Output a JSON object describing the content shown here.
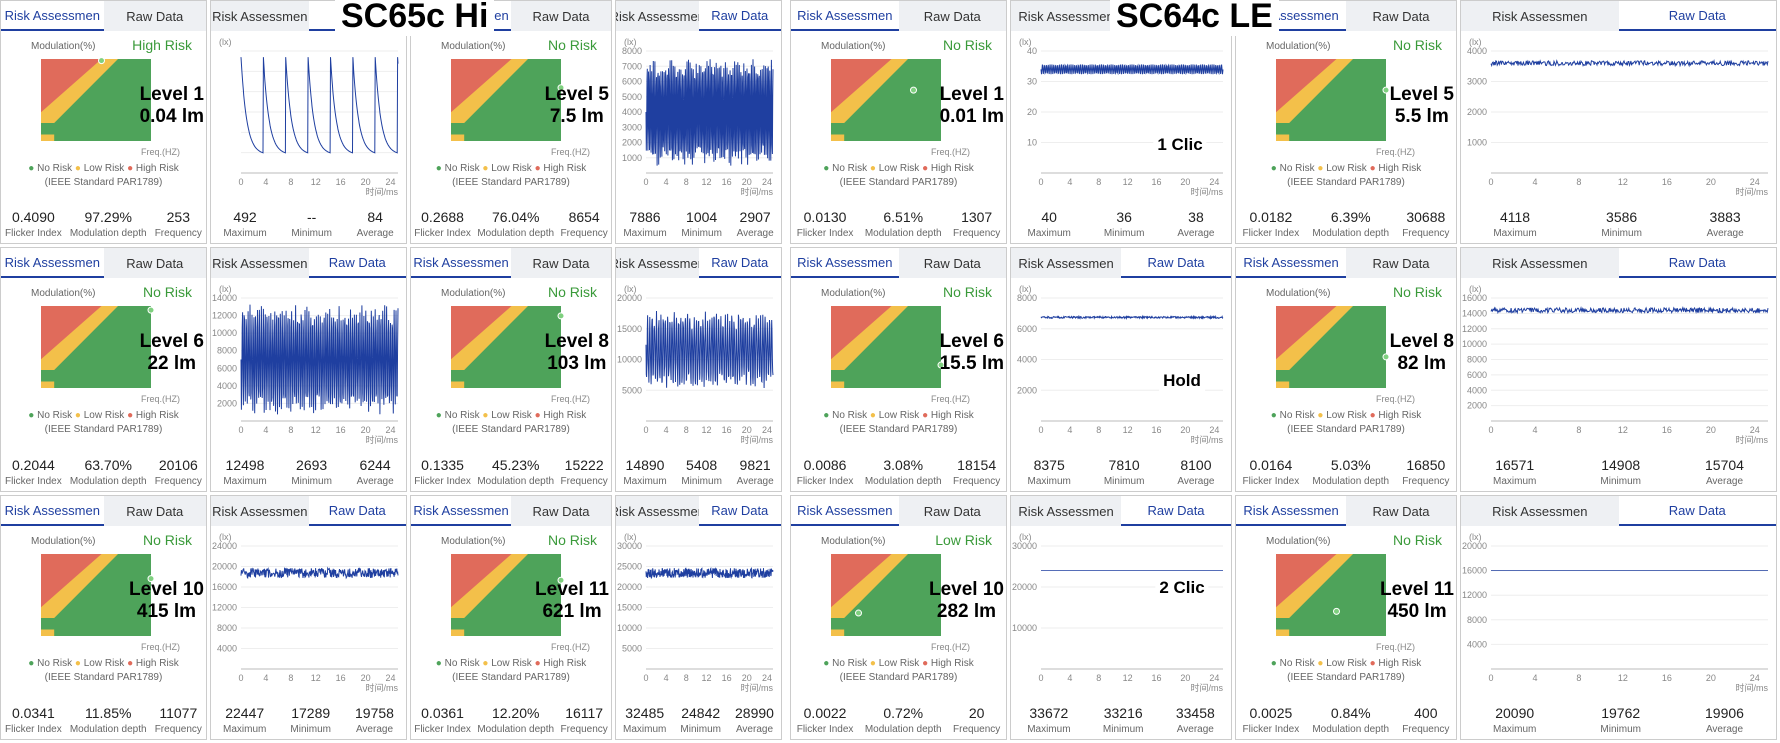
{
  "halves": [
    {
      "title": "SC65c Hi",
      "cells": [
        {
          "type": "risk",
          "tabs": [
            "Risk Assessmen",
            "Raw Data"
          ],
          "active": 0,
          "status": "High Risk",
          "statusColor": "#3a9a3a",
          "level": "Level 1",
          "lm": "0.04 lm",
          "dot": [
            0.55,
            0.02
          ],
          "stats": [
            [
              "0.4090",
              "Flicker Index"
            ],
            [
              "97.29%",
              "Modulation depth"
            ],
            [
              "253",
              "Frequency"
            ]
          ]
        },
        {
          "type": "raw",
          "tabs": [
            "Risk Assessmen",
            "Ra"
          ],
          "active": 1,
          "yticks": [
            "",
            "",
            "",
            "",
            "",
            ""
          ],
          "wave": "spike",
          "stats": [
            [
              "492",
              "Maximum"
            ],
            [
              "--",
              "Minimum"
            ],
            [
              "84",
              "Average"
            ]
          ]
        },
        {
          "type": "risk",
          "tabs": [
            "Risk Assessmen",
            "Raw Data"
          ],
          "active": 0,
          "status": "No Risk",
          "statusColor": "#3a9a3a",
          "level": "Level 5",
          "lm": "7.5 lm",
          "dot": [
            1,
            0.35
          ],
          "stats": [
            [
              "0.2688",
              "Flicker Index"
            ],
            [
              "76.04%",
              "Modulation depth"
            ],
            [
              "8654",
              "Frequency"
            ]
          ]
        },
        {
          "type": "raw",
          "tabs": [
            "Risk Assessmen",
            "Raw Data"
          ],
          "active": 1,
          "yticks": [
            "8000",
            "7000",
            "6000",
            "5000",
            "4000",
            "3000",
            "2000",
            "1000"
          ],
          "wave": "dense",
          "stats": [
            [
              "7886",
              "Maximum"
            ],
            [
              "1004",
              "Minimum"
            ],
            [
              "2907",
              "Average"
            ]
          ]
        },
        {
          "type": "risk",
          "tabs": [
            "Risk Assessmen",
            "Raw Data"
          ],
          "active": 0,
          "status": "No Risk",
          "statusColor": "#3a9a3a",
          "level": "Level 6",
          "lm": "22 lm",
          "dot": [
            1,
            0.05
          ],
          "stats": [
            [
              "0.2044",
              "Flicker Index"
            ],
            [
              "63.70%",
              "Modulation depth"
            ],
            [
              "20106",
              "Frequency"
            ]
          ]
        },
        {
          "type": "raw",
          "tabs": [
            "Risk Assessmen",
            "Raw Data"
          ],
          "active": 1,
          "yticks": [
            "14000",
            "12000",
            "10000",
            "8000",
            "6000",
            "4000",
            "2000"
          ],
          "wave": "dense",
          "stats": [
            [
              "12498",
              "Maximum"
            ],
            [
              "2693",
              "Minimum"
            ],
            [
              "6244",
              "Average"
            ]
          ]
        },
        {
          "type": "risk",
          "tabs": [
            "Risk Assessmen",
            "Raw Data"
          ],
          "active": 0,
          "status": "No Risk",
          "statusColor": "#3a9a3a",
          "level": "Level 8",
          "lm": "103 lm",
          "dot": [
            1,
            0.12
          ],
          "stats": [
            [
              "0.1335",
              "Flicker Index"
            ],
            [
              "45.23%",
              "Modulation depth"
            ],
            [
              "15222",
              "Frequency"
            ]
          ]
        },
        {
          "type": "raw",
          "tabs": [
            "Risk Assessmen",
            "Raw Data"
          ],
          "active": 1,
          "yticks": [
            "20000",
            "15000",
            "10000",
            "5000"
          ],
          "wave": "noisy",
          "stats": [
            [
              "14890",
              "Maximum"
            ],
            [
              "5408",
              "Minimum"
            ],
            [
              "9821",
              "Average"
            ]
          ]
        },
        {
          "type": "risk",
          "tabs": [
            "Risk Assessmen",
            "Raw Data"
          ],
          "active": 0,
          "status": "No Risk",
          "statusColor": "#3a9a3a",
          "level": "Level 10",
          "lm": "415 lm",
          "dot": [
            1,
            0.3
          ],
          "stats": [
            [
              "0.0341",
              "Flicker Index"
            ],
            [
              "11.85%",
              "Modulation depth"
            ],
            [
              "11077",
              "Frequency"
            ]
          ]
        },
        {
          "type": "raw",
          "tabs": [
            "Risk Assessmen",
            "Raw Data"
          ],
          "active": 1,
          "yticks": [
            "24000",
            "20000",
            "16000",
            "12000",
            "8000",
            "4000"
          ],
          "wave": "band",
          "stats": [
            [
              "22447",
              "Maximum"
            ],
            [
              "17289",
              "Minimum"
            ],
            [
              "19758",
              "Average"
            ]
          ]
        },
        {
          "type": "risk",
          "tabs": [
            "Risk Assessmen",
            "Raw Data"
          ],
          "active": 0,
          "status": "No Risk",
          "statusColor": "#3a9a3a",
          "level": "Level 11",
          "lm": "621 lm",
          "dot": [
            1,
            0.32
          ],
          "stats": [
            [
              "0.0361",
              "Flicker Index"
            ],
            [
              "12.20%",
              "Modulation depth"
            ],
            [
              "16117",
              "Frequency"
            ]
          ]
        },
        {
          "type": "raw",
          "tabs": [
            "Risk Assessmen",
            "Raw Data"
          ],
          "active": 1,
          "yticks": [
            "30000",
            "25000",
            "20000",
            "15000",
            "10000",
            "5000"
          ],
          "wave": "band",
          "stats": [
            [
              "32485",
              "Maximum"
            ],
            [
              "24842",
              "Minimum"
            ],
            [
              "28990",
              "Average"
            ]
          ]
        }
      ]
    },
    {
      "title": "SC64c LE",
      "cells": [
        {
          "type": "risk",
          "tabs": [
            "Risk Assessmen",
            "Raw Data"
          ],
          "active": 0,
          "status": "No Risk",
          "statusColor": "#3a9a3a",
          "level": "Level 1",
          "lm": "0.01 lm",
          "dot": [
            0.75,
            0.38
          ],
          "stats": [
            [
              "0.0130",
              "Flicker Index"
            ],
            [
              "6.51%",
              "Modulation depth"
            ],
            [
              "1307",
              "Frequency"
            ]
          ]
        },
        {
          "type": "raw",
          "tabs": [
            "Risk Assessmen",
            "Ra"
          ],
          "active": 1,
          "yticks": [
            "40",
            "30",
            "20",
            "10"
          ],
          "wave": "thin",
          "stats": [
            [
              "40",
              "Maximum"
            ],
            [
              "36",
              "Minimum"
            ],
            [
              "38",
              "Average"
            ]
          ]
        },
        {
          "type": "risk",
          "tabs": [
            "Risk Assessmen",
            "Raw Data"
          ],
          "active": 0,
          "status": "No Risk",
          "statusColor": "#3a9a3a",
          "level": "Level 5",
          "lm": "5.5 lm",
          "dot": [
            1,
            0.38
          ],
          "stats": [
            [
              "0.0182",
              "Flicker Index"
            ],
            [
              "6.39%",
              "Modulation depth"
            ],
            [
              "30688",
              "Frequency"
            ]
          ]
        },
        {
          "type": "raw",
          "tabs": [
            "Risk Assessmen",
            "Raw Data"
          ],
          "active": 1,
          "yticks": [
            "4000",
            "3000",
            "2000",
            "1000"
          ],
          "wave": "flatthick",
          "stats": [
            [
              "4118",
              "Maximum"
            ],
            [
              "3586",
              "Minimum"
            ],
            [
              "3883",
              "Average"
            ]
          ]
        },
        {
          "type": "risk",
          "tabs": [
            "Risk Assessmen",
            "Raw Data"
          ],
          "active": 0,
          "status": "No Risk",
          "statusColor": "#3a9a3a",
          "level": "Level 6",
          "lm": "15.5 lm",
          "dot": [
            1,
            0.72
          ],
          "stats": [
            [
              "0.0086",
              "Flicker Index"
            ],
            [
              "3.08%",
              "Modulation depth"
            ],
            [
              "18154",
              "Frequency"
            ]
          ]
        },
        {
          "type": "raw",
          "tabs": [
            "Risk Assessmen",
            "Raw Data"
          ],
          "active": 1,
          "yticks": [
            "8000",
            "6000",
            "4000",
            "2000"
          ],
          "wave": "flatthin",
          "stats": [
            [
              "8375",
              "Maximum"
            ],
            [
              "7810",
              "Minimum"
            ],
            [
              "8100",
              "Average"
            ]
          ]
        },
        {
          "type": "risk",
          "tabs": [
            "Risk Assessmen",
            "Raw Data"
          ],
          "active": 0,
          "status": "No Risk",
          "statusColor": "#3a9a3a",
          "level": "Level 8",
          "lm": "82 lm",
          "dot": [
            1,
            0.62
          ],
          "stats": [
            [
              "0.0164",
              "Flicker Index"
            ],
            [
              "5.03%",
              "Modulation depth"
            ],
            [
              "16850",
              "Frequency"
            ]
          ]
        },
        {
          "type": "raw",
          "tabs": [
            "Risk Assessmen",
            "Raw Data"
          ],
          "active": 1,
          "yticks": [
            "16000",
            "14000",
            "12000",
            "10000",
            "8000",
            "6000",
            "4000",
            "2000"
          ],
          "wave": "flatthick",
          "stats": [
            [
              "16571",
              "Maximum"
            ],
            [
              "14908",
              "Minimum"
            ],
            [
              "15704",
              "Average"
            ]
          ]
        },
        {
          "type": "risk",
          "tabs": [
            "Risk Assessmen",
            "Raw Data"
          ],
          "active": 0,
          "status": "Low Risk",
          "statusColor": "#3a9a3a",
          "level": "Level 10",
          "lm": "282 lm",
          "dot": [
            0.25,
            0.72
          ],
          "stats": [
            [
              "0.0022",
              "Flicker Index"
            ],
            [
              "0.72%",
              "Modulation depth"
            ],
            [
              "20",
              "Frequency"
            ]
          ]
        },
        {
          "type": "raw",
          "tabs": [
            "Risk Assessmen",
            "Raw Data"
          ],
          "active": 1,
          "yticks": [
            "30000",
            "20000",
            "10000"
          ],
          "wave": "line",
          "stats": [
            [
              "33672",
              "Maximum"
            ],
            [
              "33216",
              "Minimum"
            ],
            [
              "33458",
              "Average"
            ]
          ]
        },
        {
          "type": "risk",
          "tabs": [
            "Risk Assessmen",
            "Raw Data"
          ],
          "active": 0,
          "status": "No Risk",
          "statusColor": "#3a9a3a",
          "level": "Level 11",
          "lm": "450 lm",
          "dot": [
            0.55,
            0.7
          ],
          "stats": [
            [
              "0.0025",
              "Flicker Index"
            ],
            [
              "0.84%",
              "Modulation depth"
            ],
            [
              "400",
              "Frequency"
            ]
          ]
        },
        {
          "type": "raw",
          "tabs": [
            "Risk Assessmen",
            "Raw Data"
          ],
          "active": 1,
          "yticks": [
            "20000",
            "16000",
            "12000",
            "8000",
            "4000"
          ],
          "wave": "line",
          "stats": [
            [
              "20090",
              "Maximum"
            ],
            [
              "19762",
              "Minimum"
            ],
            [
              "19906",
              "Average"
            ]
          ]
        }
      ]
    }
  ],
  "clicks": [
    {
      "text": "1 Clic"
    },
    {
      "text": "Hold"
    },
    {
      "text": "2 Clic"
    }
  ],
  "common": {
    "modulation": "Modulation(%)",
    "freq": "Freq.(HZ)",
    "legend_no": "No Risk",
    "legend_low": "Low Risk",
    "legend_high": "High Risk",
    "standard": "(IEEE Standard PAR1789)",
    "lx": "(lx)",
    "time": "时间/ms",
    "xticks": [
      "0",
      "4",
      "8",
      "12",
      "16",
      "20",
      "24"
    ]
  }
}
